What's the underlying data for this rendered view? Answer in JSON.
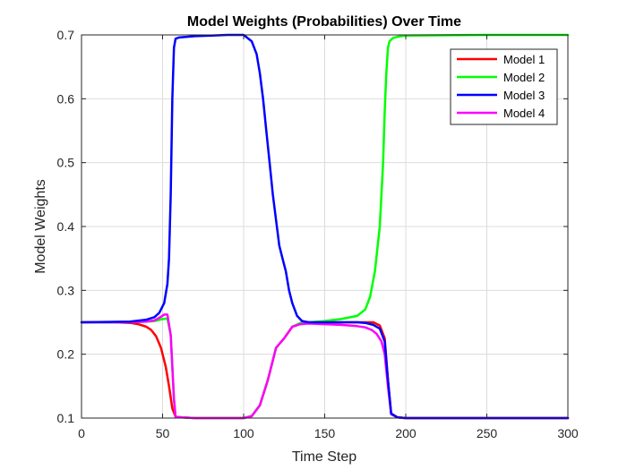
{
  "chart_data": {
    "type": "line",
    "title": "Model Weights (Probabilities) Over Time",
    "xlabel": "Time Step",
    "ylabel": "Model Weights",
    "xlim": [
      0,
      300
    ],
    "ylim": [
      0.1,
      0.7
    ],
    "xticks": [
      0,
      50,
      100,
      150,
      200,
      250,
      300
    ],
    "yticks": [
      0.1,
      0.2,
      0.3,
      0.4,
      0.5,
      0.6,
      0.7
    ],
    "xtick_labels": [
      "0",
      "50",
      "100",
      "150",
      "200",
      "250",
      "300"
    ],
    "ytick_labels": [
      "0.1",
      "0.2",
      "0.3",
      "0.4",
      "0.5",
      "0.6",
      "0.7"
    ],
    "grid": true,
    "legend_position": "top-right",
    "series": [
      {
        "name": "Model 1",
        "color": "#ff0000",
        "x": [
          0,
          20,
          30,
          35,
          40,
          43,
          46,
          49,
          52,
          54,
          56,
          58,
          62,
          70,
          100,
          105,
          110,
          115,
          120,
          125,
          130,
          135,
          140,
          150,
          160,
          170,
          175,
          180,
          184,
          187,
          189,
          191,
          195,
          200,
          250,
          300
        ],
        "y": [
          0.25,
          0.25,
          0.249,
          0.247,
          0.243,
          0.238,
          0.228,
          0.21,
          0.18,
          0.15,
          0.115,
          0.102,
          0.101,
          0.1,
          0.1,
          0.103,
          0.12,
          0.16,
          0.21,
          0.225,
          0.243,
          0.248,
          0.25,
          0.25,
          0.25,
          0.25,
          0.25,
          0.25,
          0.245,
          0.225,
          0.16,
          0.107,
          0.101,
          0.1,
          0.1,
          0.1
        ]
      },
      {
        "name": "Model 2",
        "color": "#00ff00",
        "x": [
          0,
          30,
          40,
          45,
          50,
          53,
          55,
          57,
          58,
          62,
          70,
          100,
          105,
          110,
          115,
          120,
          125,
          130,
          135,
          140,
          150,
          160,
          170,
          175,
          178,
          181,
          184,
          186,
          187,
          188,
          189,
          190,
          192,
          195,
          200,
          250,
          300
        ],
        "y": [
          0.25,
          0.25,
          0.251,
          0.252,
          0.255,
          0.256,
          0.23,
          0.13,
          0.102,
          0.101,
          0.1,
          0.1,
          0.103,
          0.12,
          0.16,
          0.21,
          0.225,
          0.243,
          0.249,
          0.25,
          0.252,
          0.255,
          0.26,
          0.27,
          0.29,
          0.33,
          0.4,
          0.5,
          0.58,
          0.64,
          0.68,
          0.69,
          0.695,
          0.697,
          0.699,
          0.7,
          0.7
        ]
      },
      {
        "name": "Model 3",
        "color": "#0000ff",
        "x": [
          0,
          30,
          40,
          45,
          48,
          51,
          53,
          54,
          55,
          56,
          57,
          58,
          60,
          65,
          70,
          80,
          90,
          100,
          105,
          108,
          110,
          112,
          114,
          116,
          118,
          120,
          122,
          124,
          126,
          128,
          130,
          133,
          136,
          140,
          150,
          160,
          170,
          175,
          180,
          184,
          187,
          189,
          191,
          195,
          200,
          250,
          300
        ],
        "y": [
          0.25,
          0.251,
          0.254,
          0.258,
          0.265,
          0.28,
          0.31,
          0.35,
          0.45,
          0.6,
          0.68,
          0.694,
          0.696,
          0.697,
          0.698,
          0.699,
          0.7,
          0.7,
          0.69,
          0.67,
          0.64,
          0.6,
          0.55,
          0.5,
          0.45,
          0.41,
          0.37,
          0.35,
          0.33,
          0.3,
          0.28,
          0.26,
          0.252,
          0.25,
          0.25,
          0.25,
          0.25,
          0.249,
          0.246,
          0.24,
          0.22,
          0.16,
          0.107,
          0.101,
          0.1,
          0.1,
          0.1
        ]
      },
      {
        "name": "Model 4",
        "color": "#ff00ff",
        "x": [
          0,
          30,
          40,
          45,
          48,
          51,
          53,
          55,
          57,
          58,
          62,
          70,
          100,
          105,
          110,
          115,
          120,
          125,
          130,
          135,
          140,
          150,
          160,
          170,
          175,
          179,
          182,
          185,
          187,
          189,
          191,
          195,
          200,
          250,
          300
        ],
        "y": [
          0.25,
          0.25,
          0.251,
          0.253,
          0.257,
          0.262,
          0.262,
          0.23,
          0.13,
          0.102,
          0.101,
          0.1,
          0.1,
          0.103,
          0.12,
          0.16,
          0.21,
          0.225,
          0.243,
          0.247,
          0.248,
          0.247,
          0.246,
          0.244,
          0.242,
          0.238,
          0.232,
          0.22,
          0.2,
          0.15,
          0.106,
          0.101,
          0.1,
          0.1,
          0.1
        ]
      }
    ]
  }
}
